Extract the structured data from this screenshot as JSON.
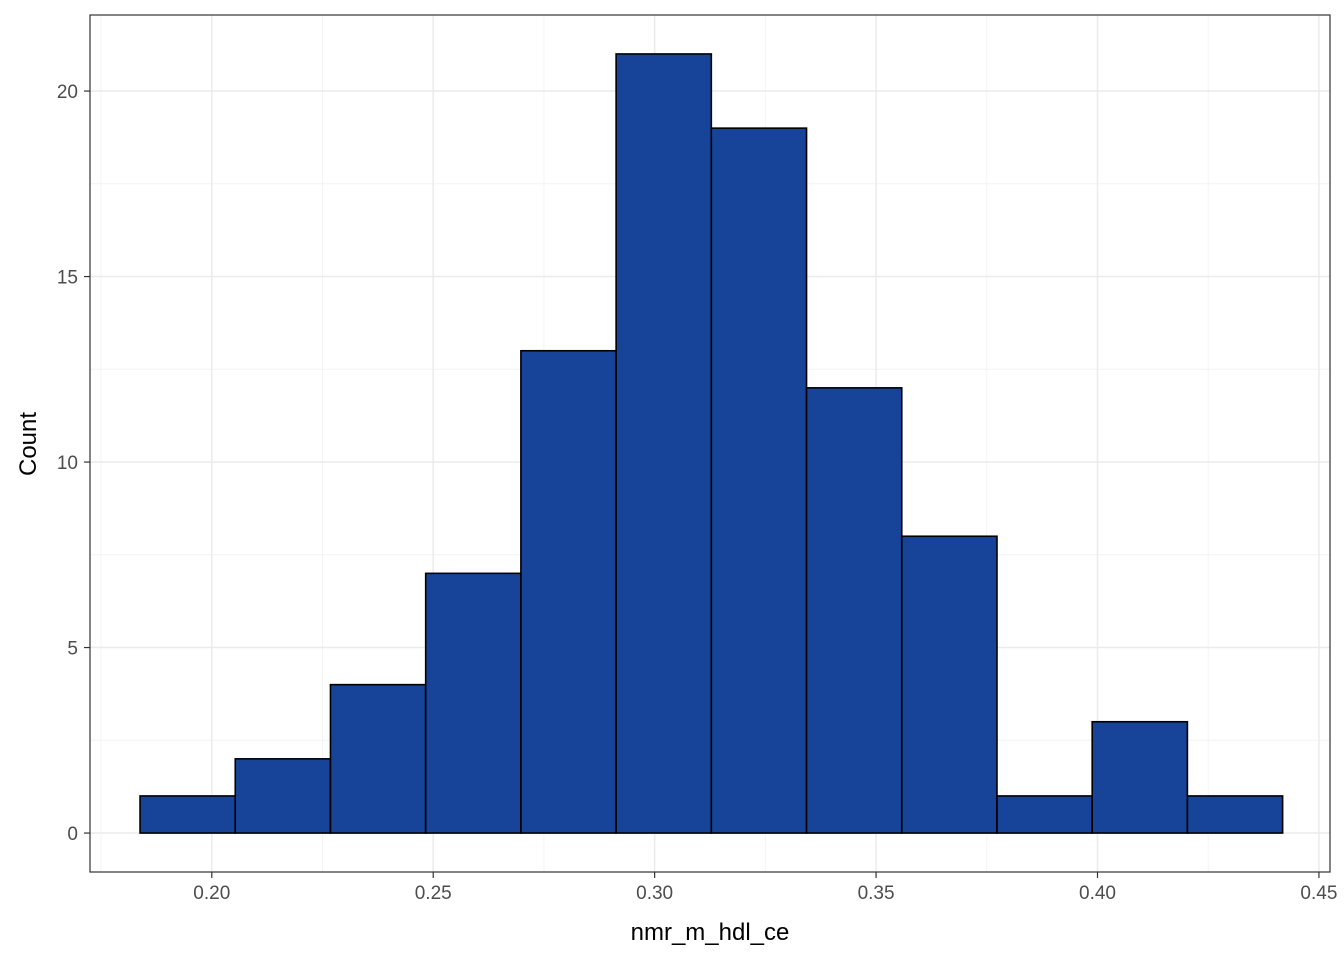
{
  "chart_data": {
    "type": "bar",
    "subtype": "histogram",
    "xlabel": "nmr_m_hdl_ce",
    "ylabel": "Count",
    "xlim": [
      0.1725,
      0.4525
    ],
    "ylim": [
      -1.05,
      22.05
    ],
    "x_ticks": [
      0.2,
      0.25,
      0.3,
      0.35,
      0.4,
      0.45
    ],
    "x_tick_labels": [
      "0.20",
      "0.25",
      "0.30",
      "0.35",
      "0.40",
      "0.45"
    ],
    "y_ticks": [
      0,
      5,
      10,
      15,
      20
    ],
    "y_tick_labels": [
      "0",
      "5",
      "10",
      "15",
      "20"
    ],
    "grid": true,
    "bin_edges": [
      0.1838,
      0.2053,
      0.2268,
      0.2483,
      0.2698,
      0.2913,
      0.3128,
      0.3343,
      0.3558,
      0.3773,
      0.3988,
      0.4203,
      0.4418
    ],
    "counts": [
      1,
      2,
      4,
      7,
      13,
      21,
      19,
      12,
      8,
      1,
      3,
      1
    ],
    "colors": {
      "bar_fill": "#174499",
      "bar_stroke": "#000000",
      "grid_major": "#ebebeb",
      "grid_minor": "#f4f4f4",
      "panel_border": "#333333"
    }
  }
}
